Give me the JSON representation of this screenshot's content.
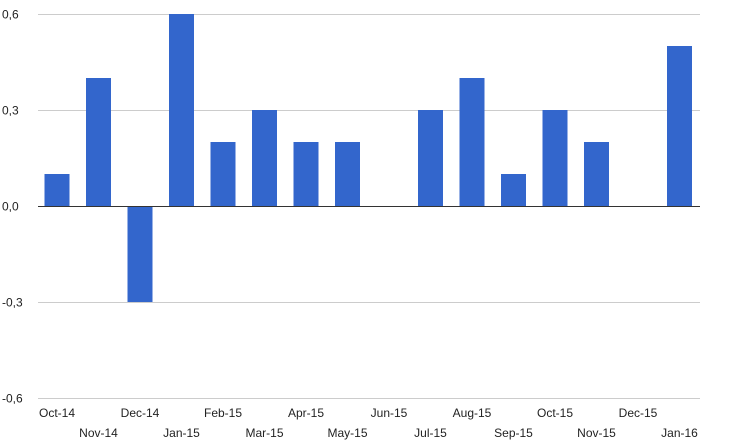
{
  "chart_data": {
    "type": "bar",
    "categories": [
      "Oct-14",
      "Nov-14",
      "Dec-14",
      "Jan-15",
      "Feb-15",
      "Mar-15",
      "Apr-15",
      "May-15",
      "Jun-15",
      "Jul-15",
      "Aug-15",
      "Sep-15",
      "Oct-15",
      "Nov-15",
      "Dec-15",
      "Jan-16"
    ],
    "values": [
      0.1,
      0.4,
      -0.3,
      0.6,
      0.2,
      0.3,
      0.2,
      0.2,
      0.0,
      0.3,
      0.4,
      0.1,
      0.3,
      0.2,
      0.0,
      0.5
    ],
    "ylim": [
      -0.6,
      0.6
    ],
    "yticks": [
      0.6,
      0.3,
      0.0,
      -0.3,
      -0.6
    ],
    "ytick_labels": [
      "0,6",
      "0,3",
      "0,0",
      "-0,3",
      "-0,6"
    ],
    "grid": true,
    "bar_color": "#3366cc",
    "title": "",
    "xlabel": "",
    "ylabel": ""
  }
}
